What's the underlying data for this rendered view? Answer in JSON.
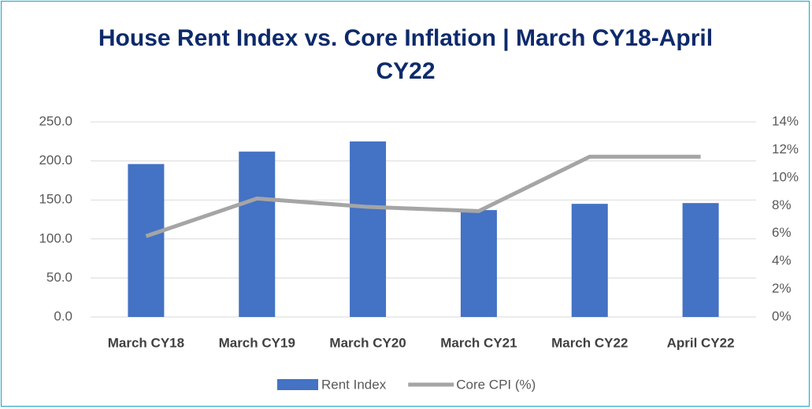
{
  "chart_data": {
    "type": "bar_line",
    "title": "House Rent Index vs. Core Inflation | March CY18-April CY22",
    "categories": [
      "March CY18",
      "March CY19",
      "March CY20",
      "March CY21",
      "March CY22",
      "April CY22"
    ],
    "series": [
      {
        "name": "Rent Index",
        "type": "bar",
        "color": "#4472c4",
        "values": [
          196,
          212,
          225,
          137,
          145,
          146
        ]
      },
      {
        "name": "Core CPI (%)",
        "type": "line",
        "axis": "y2",
        "color": "#a5a5a5",
        "values": [
          5.8,
          8.5,
          7.9,
          7.6,
          11.5,
          11.5
        ]
      }
    ],
    "ylim": [
      0,
      250
    ],
    "yticks": [
      {
        "value": 0,
        "label": "0.0"
      },
      {
        "value": 50,
        "label": "50.0"
      },
      {
        "value": 100,
        "label": "100.0"
      },
      {
        "value": 150,
        "label": "150.0"
      },
      {
        "value": 200,
        "label": "200.0"
      },
      {
        "value": 250,
        "label": "250.0"
      }
    ],
    "y2lim": [
      0,
      14
    ],
    "y2ticks": [
      {
        "value": 0,
        "label": "0%"
      },
      {
        "value": 2,
        "label": "2%"
      },
      {
        "value": 4,
        "label": "4%"
      },
      {
        "value": 6,
        "label": "6%"
      },
      {
        "value": 8,
        "label": "8%"
      },
      {
        "value": 10,
        "label": "10%"
      },
      {
        "value": 12,
        "label": "12%"
      },
      {
        "value": 14,
        "label": "14%"
      }
    ],
    "grid": true,
    "legend": "bottom"
  }
}
